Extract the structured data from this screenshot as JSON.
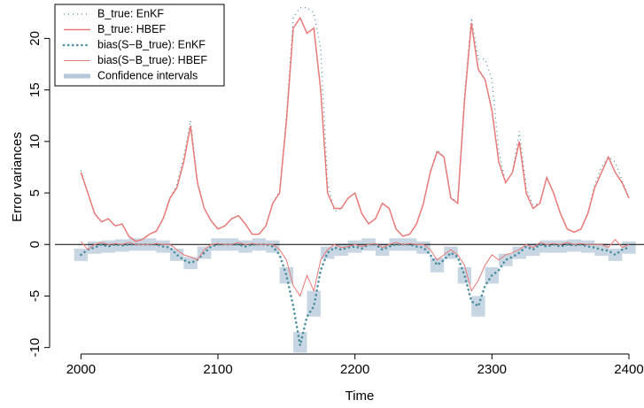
{
  "chart_data": {
    "type": "line",
    "xlabel": "Time",
    "ylabel": "Error variances",
    "xlim": [
      1981,
      2411
    ],
    "ylim": [
      -10.2,
      23.3
    ],
    "xticks": [
      2000,
      2100,
      2200,
      2300,
      2400
    ],
    "yticks": [
      -10,
      -5,
      0,
      5,
      10,
      15,
      20
    ],
    "legend": "top-left",
    "x": [
      2000,
      2005,
      2010,
      2015,
      2020,
      2025,
      2030,
      2035,
      2040,
      2045,
      2050,
      2055,
      2060,
      2065,
      2070,
      2075,
      2080,
      2085,
      2090,
      2095,
      2100,
      2105,
      2110,
      2115,
      2120,
      2125,
      2130,
      2135,
      2140,
      2145,
      2150,
      2155,
      2160,
      2165,
      2170,
      2175,
      2180,
      2185,
      2190,
      2195,
      2200,
      2205,
      2210,
      2215,
      2220,
      2225,
      2230,
      2235,
      2240,
      2245,
      2250,
      2255,
      2260,
      2265,
      2270,
      2275,
      2280,
      2285,
      2290,
      2295,
      2300,
      2305,
      2310,
      2315,
      2320,
      2325,
      2330,
      2335,
      2340,
      2345,
      2350,
      2355,
      2360,
      2365,
      2370,
      2375,
      2380,
      2385,
      2390,
      2395,
      2400
    ],
    "series": [
      {
        "name": "B_true: EnKF",
        "color": "#4a8fa0",
        "style": "dotted",
        "values": [
          7.2,
          5,
          3,
          2.2,
          2.5,
          1.8,
          2,
          0.8,
          0.3,
          0.5,
          1,
          1.3,
          2.5,
          4.5,
          5.8,
          8.5,
          12,
          6.2,
          3.5,
          2.3,
          1.5,
          1.8,
          2.5,
          2.8,
          2,
          1,
          1,
          1.8,
          4,
          5.2,
          12.5,
          22,
          23,
          23,
          22.5,
          19,
          6,
          3.2,
          3.5,
          4.5,
          5,
          3,
          2,
          2.5,
          4,
          3.5,
          1.5,
          0.8,
          1,
          2,
          4,
          7,
          9.2,
          8.5,
          4.5,
          4.2,
          14.5,
          22,
          18,
          18,
          16,
          9,
          6,
          7,
          11,
          5.5,
          3.8,
          4,
          6.5,
          5,
          3,
          1.5,
          1.2,
          1.5,
          3,
          5.8,
          7.5,
          8.5,
          8,
          6.2,
          4.6
        ]
      },
      {
        "name": "B_true: HBEF",
        "color": "#e87a78",
        "style": "solid",
        "values": [
          7,
          5,
          3,
          2.2,
          2.5,
          1.8,
          2,
          0.8,
          0.3,
          0.5,
          1,
          1.3,
          2.5,
          4.5,
          5.5,
          8,
          11.5,
          6,
          3.5,
          2.3,
          1.5,
          1.8,
          2.5,
          2.8,
          2,
          1,
          1,
          1.8,
          4,
          5,
          12,
          21,
          22,
          20.5,
          21,
          15,
          5,
          3.5,
          3.5,
          4.5,
          5,
          3,
          2,
          2.5,
          4,
          3.5,
          1.5,
          0.8,
          1,
          2,
          4,
          7,
          9,
          8.5,
          4.5,
          4,
          14,
          21.5,
          17,
          16,
          13,
          8,
          6,
          7,
          10,
          5,
          3.5,
          4,
          6.5,
          5,
          3,
          1.5,
          1.2,
          1.5,
          3,
          5.5,
          7,
          8.5,
          7,
          6,
          4.5
        ]
      },
      {
        "name": "bias(S−B_true): EnKF",
        "color": "#4a8fa0",
        "style": "dots",
        "values": [
          -1,
          -0.5,
          -0.3,
          0,
          -0.2,
          0,
          -0.1,
          0,
          0,
          0,
          0,
          0,
          -0.2,
          -0.3,
          -1,
          -1.5,
          -1.8,
          -1.5,
          -0.8,
          -0.2,
          0,
          0,
          0,
          0,
          -0.2,
          0,
          0,
          0,
          -0.2,
          -1,
          -3,
          -6,
          -9.8,
          -7,
          -6,
          -2.5,
          -0.8,
          -0.3,
          -0.5,
          -0.3,
          -0.2,
          -0.4,
          0,
          0,
          -0.5,
          -0.2,
          0,
          0,
          0,
          -0.2,
          -0.3,
          -1,
          -2,
          -1.5,
          -0.8,
          -1.2,
          -3,
          -5.5,
          -6,
          -4,
          -3,
          -2.5,
          -1.5,
          -1.2,
          -0.8,
          -0.2,
          -0.5,
          0,
          -0.2,
          0,
          -0.2,
          0,
          -0.1,
          0,
          -0.2,
          -0.3,
          -0.5,
          -0.6,
          -1,
          -0.5,
          -0.3
        ]
      },
      {
        "name": "bias(S−B_true): HBEF",
        "color": "#e87a78",
        "style": "thin",
        "values": [
          0.3,
          -0.5,
          0,
          0.2,
          0,
          0.1,
          0,
          0.2,
          0,
          0,
          0,
          0.1,
          0,
          0,
          -0.5,
          -1,
          -1.2,
          -1.5,
          -0.5,
          0,
          0.1,
          0,
          0,
          0.2,
          0,
          0.1,
          0,
          0,
          0,
          -0.5,
          -1.5,
          -4,
          -5,
          -3,
          -4.5,
          -1.5,
          -0.5,
          0,
          -0.3,
          -0.2,
          0,
          -0.2,
          0,
          0.1,
          -0.3,
          0,
          0.2,
          0,
          0.1,
          0,
          0,
          -0.5,
          -1.5,
          -1,
          -0.5,
          -1,
          -2,
          -4.5,
          -3.5,
          -2,
          -1,
          -1.5,
          -1,
          -0.8,
          -0.5,
          0,
          -0.3,
          0.2,
          0,
          0.1,
          0,
          0.2,
          0,
          0.1,
          0,
          0,
          0,
          -0.3,
          0.5,
          -0.3,
          0
        ]
      },
      {
        "name": "Confidence intervals",
        "color": "#b5c8da",
        "style": "band",
        "x": [
          2000,
          2010,
          2020,
          2030,
          2040,
          2050,
          2060,
          2070,
          2080,
          2090,
          2100,
          2110,
          2120,
          2130,
          2140,
          2150,
          2160,
          2170,
          2180,
          2190,
          2200,
          2210,
          2220,
          2230,
          2240,
          2250,
          2260,
          2270,
          2280,
          2290,
          2300,
          2310,
          2320,
          2330,
          2340,
          2350,
          2360,
          2370,
          2380,
          2390,
          2400
        ],
        "lower": [
          -1.6,
          -0.9,
          -0.8,
          -0.7,
          -0.6,
          -0.6,
          -0.8,
          -1.6,
          -2.4,
          -1.4,
          -0.6,
          -0.6,
          -0.8,
          -0.6,
          -0.8,
          -3.8,
          -10.5,
          -7,
          -1.4,
          -1.1,
          -0.8,
          -0.6,
          -1.1,
          -0.6,
          -0.6,
          -0.9,
          -2.7,
          -1.4,
          -3.8,
          -7,
          -3.8,
          -2.1,
          -1.4,
          -1.1,
          -0.8,
          -0.8,
          -0.7,
          -0.8,
          -1.1,
          -1.6,
          -0.9
        ],
        "upper": [
          -0.4,
          0.3,
          0.4,
          0.5,
          0.6,
          0.6,
          0.4,
          -0.4,
          -1.2,
          -0.2,
          0.6,
          0.6,
          0.4,
          0.6,
          0.4,
          -2.2,
          -8.5,
          -4.5,
          -0.2,
          0.1,
          0.4,
          0.6,
          0.1,
          0.6,
          0.6,
          0.3,
          -1.3,
          -0.2,
          -2.2,
          -5,
          -2.2,
          -0.9,
          -0.2,
          0.1,
          0.4,
          0.4,
          0.5,
          0.4,
          0.1,
          -0.4,
          0.3
        ]
      }
    ]
  }
}
